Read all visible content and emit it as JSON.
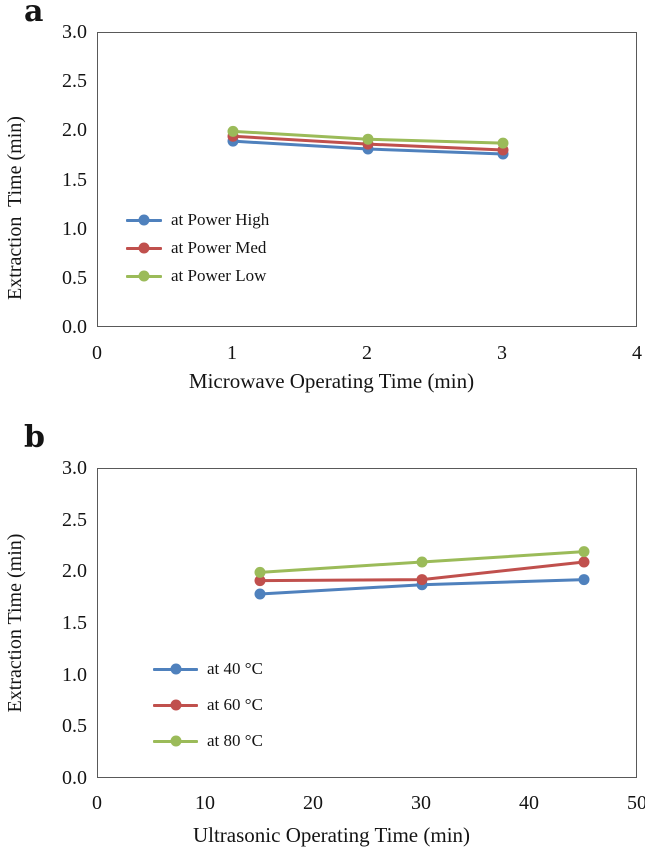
{
  "page": {
    "background": "#ffffff",
    "axis_border_color": "#595959"
  },
  "chart_data": [
    {
      "type": "line",
      "panel_label": "a",
      "xlabel": "Microwave Operating Time (min)",
      "ylabel": "Extraction  Time (min)",
      "xlim": [
        0,
        4
      ],
      "ylim": [
        0,
        3.0
      ],
      "xticks": [
        "0",
        "1",
        "2",
        "3",
        "4"
      ],
      "yticks": [
        "0.0",
        "0.5",
        "1.0",
        "1.5",
        "2.0",
        "2.5",
        "3.0"
      ],
      "grid": false,
      "legend_position": "inside-left",
      "x": [
        1,
        2,
        3
      ],
      "series": [
        {
          "name": "at Power High",
          "color": "#4F81BD",
          "values": [
            1.9,
            1.82,
            1.77
          ]
        },
        {
          "name": "at Power Med",
          "color": "#C0504D",
          "values": [
            1.95,
            1.87,
            1.81
          ]
        },
        {
          "name": "at Power Low",
          "color": "#9BBB59",
          "values": [
            2.0,
            1.92,
            1.88
          ]
        }
      ]
    },
    {
      "type": "line",
      "panel_label": "b",
      "xlabel": "Ultrasonic Operating Time (min)",
      "ylabel": "Extraction Time (min)",
      "xlim": [
        0,
        50
      ],
      "ylim": [
        0,
        3.0
      ],
      "xticks": [
        "0",
        "10",
        "20",
        "30",
        "40",
        "50"
      ],
      "yticks": [
        "0.0",
        "0.5",
        "1.0",
        "1.5",
        "2.0",
        "2.5",
        "3.0"
      ],
      "grid": false,
      "legend_position": "inside-left",
      "x": [
        15,
        30,
        45
      ],
      "series": [
        {
          "name": "at 40 °C",
          "color": "#4F81BD",
          "values": [
            1.79,
            1.88,
            1.93
          ]
        },
        {
          "name": "at 60 °C",
          "color": "#C0504D",
          "values": [
            1.92,
            1.93,
            2.1
          ]
        },
        {
          "name": "at 80 °C",
          "color": "#9BBB59",
          "values": [
            2.0,
            2.1,
            2.2
          ]
        }
      ]
    }
  ]
}
